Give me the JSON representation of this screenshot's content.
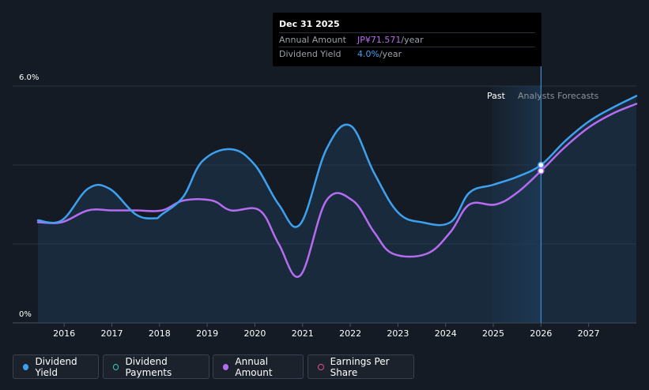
{
  "tooltip": {
    "date": "Dec 31 2025",
    "amount_label": "Annual Amount",
    "amount_value": "JP¥71.571",
    "amount_unit": "/year",
    "yield_label": "Dividend Yield",
    "yield_value": "4.0%",
    "yield_unit": "/year"
  },
  "regions": {
    "past": "Past",
    "forecast": "Analysts Forecasts"
  },
  "legend": [
    {
      "label": "Dividend Yield",
      "color": "#3ea1f0",
      "filled": true
    },
    {
      "label": "Dividend Payments",
      "color": "#3ecfbf",
      "filled": false
    },
    {
      "label": "Annual Amount",
      "color": "#b56cf0",
      "filled": true
    },
    {
      "label": "Earnings Per Share",
      "color": "#e0508e",
      "filled": false
    }
  ],
  "chart_data": {
    "type": "line",
    "y_tick_labels": [
      "6.0%",
      "0%"
    ],
    "ylim": [
      0,
      6
    ],
    "xlim": [
      2015.45,
      2028.0
    ],
    "x_ticks": [
      2016,
      2017,
      2018,
      2019,
      2020,
      2021,
      2022,
      2023,
      2024,
      2025,
      2026,
      2027
    ],
    "forecast_start": 2026.0,
    "series": [
      {
        "name": "Dividend Yield",
        "color": "#3ea1f0",
        "points": [
          [
            2015.45,
            2.6
          ],
          [
            2015.95,
            2.6
          ],
          [
            2016.5,
            3.4
          ],
          [
            2016.95,
            3.4
          ],
          [
            2017.5,
            2.75
          ],
          [
            2017.9,
            2.65
          ],
          [
            2018.05,
            2.75
          ],
          [
            2018.5,
            3.2
          ],
          [
            2018.9,
            4.1
          ],
          [
            2019.5,
            4.4
          ],
          [
            2020.0,
            4.0
          ],
          [
            2020.5,
            3.0
          ],
          [
            2020.95,
            2.5
          ],
          [
            2021.5,
            4.4
          ],
          [
            2022.0,
            5.0
          ],
          [
            2022.5,
            3.8
          ],
          [
            2023.0,
            2.8
          ],
          [
            2023.5,
            2.55
          ],
          [
            2024.1,
            2.55
          ],
          [
            2024.5,
            3.3
          ],
          [
            2025.0,
            3.5
          ],
          [
            2025.5,
            3.7
          ],
          [
            2026.0,
            4.0
          ],
          [
            2026.5,
            4.6
          ],
          [
            2027.0,
            5.1
          ],
          [
            2027.5,
            5.45
          ],
          [
            2028.0,
            5.75
          ]
        ]
      },
      {
        "name": "Annual Amount",
        "color": "#b56cf0",
        "points": [
          [
            2015.45,
            2.55
          ],
          [
            2015.95,
            2.55
          ],
          [
            2016.5,
            2.85
          ],
          [
            2017.0,
            2.85
          ],
          [
            2017.5,
            2.85
          ],
          [
            2018.05,
            2.85
          ],
          [
            2018.5,
            3.1
          ],
          [
            2019.1,
            3.1
          ],
          [
            2019.5,
            2.85
          ],
          [
            2020.1,
            2.85
          ],
          [
            2020.5,
            2.0
          ],
          [
            2020.95,
            1.2
          ],
          [
            2021.5,
            3.1
          ],
          [
            2022.05,
            3.1
          ],
          [
            2022.5,
            2.3
          ],
          [
            2022.9,
            1.75
          ],
          [
            2023.6,
            1.75
          ],
          [
            2024.1,
            2.3
          ],
          [
            2024.5,
            3.0
          ],
          [
            2025.05,
            3.0
          ],
          [
            2025.5,
            3.3
          ],
          [
            2026.0,
            3.85
          ],
          [
            2026.5,
            4.45
          ],
          [
            2027.0,
            4.95
          ],
          [
            2027.5,
            5.3
          ],
          [
            2028.0,
            5.55
          ]
        ]
      }
    ]
  }
}
